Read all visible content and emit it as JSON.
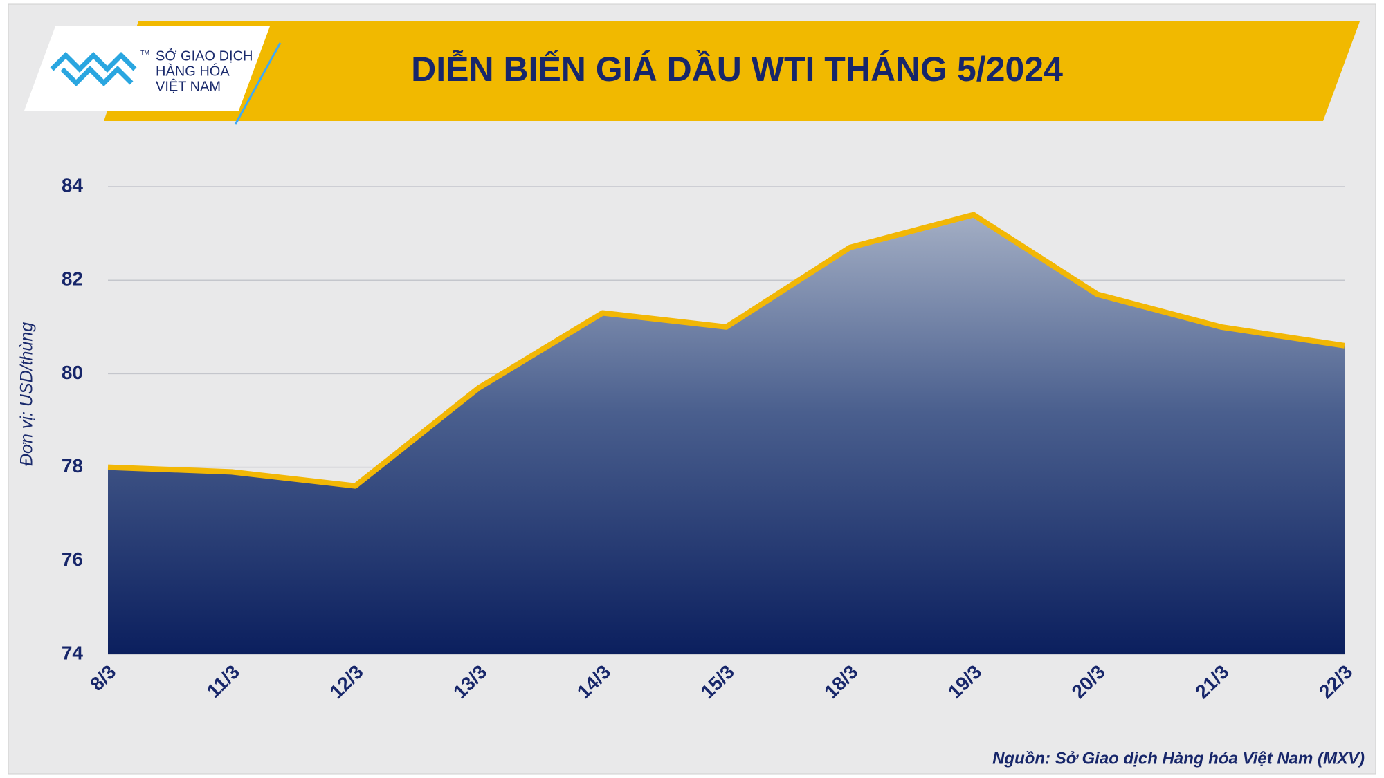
{
  "logo": {
    "lines": [
      "SỞ GIAO DỊCH",
      "HÀNG HÓA",
      "VIỆT NAM"
    ],
    "mark": "TM"
  },
  "chart_data": {
    "type": "area",
    "title": "DIỄN BIẾN GIÁ DẦU WTI THÁNG 5/2024",
    "y_label": "Đơn vị: USD/thùng",
    "source": "Nguồn: Sở Giao dịch Hàng hóa Việt Nam (MXV)",
    "categories": [
      "8/3",
      "11/3",
      "12/3",
      "13/3",
      "14/3",
      "15/3",
      "18/3",
      "19/3",
      "20/3",
      "21/3",
      "22/3"
    ],
    "values": [
      78.0,
      77.9,
      77.6,
      79.7,
      81.3,
      81.0,
      82.7,
      83.4,
      81.7,
      81.0,
      80.6
    ],
    "color": "#f2b705",
    "ylim": [
      74,
      84
    ],
    "yticks": [
      74,
      76,
      78,
      80,
      82,
      84
    ],
    "grid": true
  }
}
